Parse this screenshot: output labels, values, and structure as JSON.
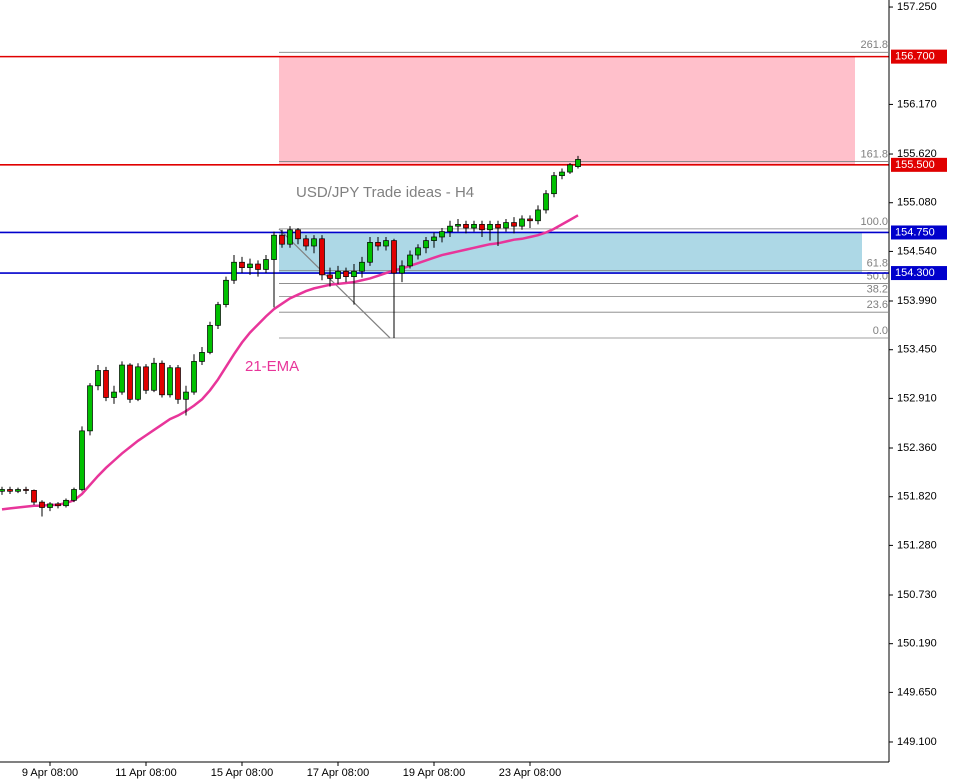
{
  "chart_data": {
    "type": "candlestick",
    "title": "USD/JPY Trade ideas - H4",
    "categories": [
      null,
      null,
      null,
      null,
      null,
      null,
      "9 Apr 08:00",
      null,
      null,
      null,
      null,
      null,
      null,
      null,
      null,
      null,
      null,
      null,
      "11 Apr 08:00",
      null,
      null,
      null,
      null,
      null,
      null,
      null,
      null,
      null,
      null,
      null,
      "15 Apr 08:00",
      null,
      null,
      null,
      null,
      null,
      null,
      null,
      null,
      null,
      null,
      null,
      "17 Apr 08:00",
      null,
      null,
      null,
      null,
      null,
      null,
      null,
      null,
      null,
      null,
      null,
      "19 Apr 08:00",
      null,
      null,
      null,
      null,
      null,
      null,
      null,
      null,
      null,
      null,
      null,
      "23 Apr 08:00",
      null,
      null,
      null,
      null,
      null,
      null
    ],
    "open": [
      151.88,
      151.9,
      151.88,
      151.9,
      151.89,
      151.76,
      151.7,
      151.74,
      151.72,
      151.78,
      151.9,
      152.55,
      153.05,
      153.22,
      152.92,
      152.98,
      153.28,
      152.9,
      153.26,
      153.0,
      153.3,
      152.95,
      153.25,
      152.9,
      152.98,
      153.32,
      153.42,
      153.72,
      153.95,
      154.22,
      154.42,
      154.36,
      154.4,
      154.34,
      154.45,
      154.72,
      154.62,
      154.78,
      154.68,
      154.6,
      154.68,
      154.28,
      154.24,
      154.32,
      154.26,
      154.32,
      154.42,
      154.64,
      154.6,
      154.66,
      154.3,
      154.38,
      154.5,
      154.58,
      154.66,
      154.7,
      154.76,
      154.82,
      154.84,
      154.8,
      154.84,
      154.78,
      154.84,
      154.8,
      154.86,
      154.82,
      154.9,
      154.88,
      155.0,
      155.18,
      155.38,
      155.42,
      155.48
    ],
    "high": [
      151.93,
      151.93,
      151.92,
      151.93,
      151.9,
      151.78,
      151.76,
      151.76,
      151.8,
      151.92,
      152.6,
      153.08,
      153.28,
      153.26,
      153.05,
      153.32,
      153.3,
      153.3,
      153.29,
      153.36,
      153.33,
      153.28,
      153.28,
      153.05,
      153.4,
      153.48,
      153.76,
      153.98,
      154.26,
      154.5,
      154.48,
      154.46,
      154.44,
      154.5,
      154.76,
      154.78,
      154.82,
      154.8,
      154.72,
      154.72,
      154.72,
      154.36,
      154.38,
      154.36,
      154.4,
      154.48,
      154.7,
      154.7,
      154.7,
      154.68,
      154.44,
      154.55,
      154.62,
      154.7,
      154.75,
      154.8,
      154.88,
      154.9,
      154.88,
      154.88,
      154.88,
      154.88,
      154.88,
      154.9,
      154.92,
      154.94,
      154.94,
      155.05,
      155.22,
      155.42,
      155.46,
      155.52,
      155.6
    ],
    "low": [
      151.84,
      151.85,
      151.86,
      151.85,
      151.73,
      151.6,
      151.66,
      151.69,
      151.7,
      151.76,
      151.88,
      152.5,
      153.0,
      152.88,
      152.85,
      152.95,
      152.86,
      152.88,
      152.96,
      152.98,
      152.92,
      152.92,
      152.85,
      152.72,
      152.95,
      153.28,
      153.4,
      153.68,
      153.92,
      154.18,
      154.3,
      154.28,
      154.26,
      154.3,
      153.92,
      154.58,
      154.58,
      154.62,
      154.55,
      154.52,
      154.22,
      154.15,
      154.18,
      154.2,
      153.95,
      154.25,
      154.38,
      154.55,
      154.55,
      153.58,
      154.2,
      154.35,
      154.45,
      154.52,
      154.58,
      154.64,
      154.7,
      154.76,
      154.74,
      154.76,
      154.7,
      154.66,
      154.6,
      154.76,
      154.74,
      154.78,
      154.8,
      154.84,
      154.96,
      155.14,
      155.34,
      155.4,
      155.46
    ],
    "close": [
      151.9,
      151.88,
      151.9,
      151.89,
      151.76,
      151.7,
      151.74,
      151.72,
      151.78,
      151.9,
      152.55,
      153.05,
      153.22,
      152.92,
      152.98,
      153.28,
      152.9,
      153.26,
      153.0,
      153.3,
      152.95,
      153.25,
      152.9,
      152.98,
      153.32,
      153.42,
      153.72,
      153.95,
      154.22,
      154.42,
      154.36,
      154.4,
      154.34,
      154.45,
      154.72,
      154.62,
      154.78,
      154.68,
      154.6,
      154.68,
      154.28,
      154.24,
      154.32,
      154.26,
      154.32,
      154.42,
      154.64,
      154.6,
      154.66,
      154.3,
      154.38,
      154.5,
      154.58,
      154.66,
      154.7,
      154.76,
      154.82,
      154.84,
      154.8,
      154.84,
      154.78,
      154.84,
      154.8,
      154.86,
      154.82,
      154.9,
      154.88,
      155.0,
      155.18,
      155.38,
      155.42,
      155.5,
      155.56
    ],
    "up_color": "#00c000",
    "down_color": "#e00000",
    "ema": {
      "name": "21-EMA",
      "color": "#e8359a",
      "values": [
        151.68,
        151.69,
        151.7,
        151.71,
        151.72,
        151.72,
        151.73,
        151.73,
        151.75,
        151.78,
        151.85,
        151.95,
        152.05,
        152.14,
        152.22,
        152.3,
        152.37,
        152.44,
        152.5,
        152.56,
        152.62,
        152.68,
        152.72,
        152.77,
        152.83,
        152.9,
        153.0,
        153.12,
        153.26,
        153.4,
        153.53,
        153.64,
        153.73,
        153.82,
        153.9,
        153.96,
        154.02,
        154.06,
        154.1,
        154.13,
        154.15,
        154.17,
        154.18,
        154.19,
        154.2,
        154.22,
        154.24,
        154.27,
        154.3,
        154.33,
        154.35,
        154.38,
        154.41,
        154.44,
        154.47,
        154.5,
        154.52,
        154.54,
        154.56,
        154.58,
        154.6,
        154.62,
        154.63,
        154.65,
        154.67,
        154.68,
        154.7,
        154.72,
        154.75,
        154.79,
        154.84,
        154.89,
        154.94
      ]
    },
    "levels": [
      {
        "value": 156.7,
        "label": "156.700",
        "color": "#e00000"
      },
      {
        "value": 155.5,
        "label": "155.500",
        "color": "#e00000"
      },
      {
        "value": 154.75,
        "label": "154.750",
        "color": "#0000cc"
      },
      {
        "value": 154.3,
        "label": "154.300",
        "color": "#0000cc"
      }
    ],
    "zones": [
      {
        "from": 155.5,
        "to": 156.7,
        "color": "#ffc0cb"
      },
      {
        "from": 154.3,
        "to": 154.75,
        "color": "#add8e6"
      }
    ],
    "fib": [
      {
        "label": "261.8",
        "value": 156.748
      },
      {
        "label": "161.8",
        "value": 155.538
      },
      {
        "label": "100.0",
        "value": 154.79
      },
      {
        "label": "61.8",
        "value": 154.33
      },
      {
        "label": "50.0",
        "value": 154.185
      },
      {
        "label": "38.2",
        "value": 154.04
      },
      {
        "label": "23.6",
        "value": 153.866
      },
      {
        "label": "0.0",
        "value": 153.58
      }
    ],
    "ylim": [
      148.878,
      157.328
    ],
    "yticks": [
      {
        "value": 157.25,
        "label": "157.250"
      },
      {
        "value": 156.17,
        "label": "156.170"
      },
      {
        "value": 155.62,
        "label": "155.620"
      },
      {
        "value": 155.08,
        "label": "155.080"
      },
      {
        "value": 154.54,
        "label": "154.540"
      },
      {
        "value": 153.99,
        "label": "153.990"
      },
      {
        "value": 153.45,
        "label": "153.450"
      },
      {
        "value": 152.91,
        "label": "152.910"
      },
      {
        "value": 152.36,
        "label": "152.360"
      },
      {
        "value": 151.82,
        "label": "151.820"
      },
      {
        "value": 151.28,
        "label": "151.280"
      },
      {
        "value": 150.73,
        "label": "150.730"
      },
      {
        "value": 150.19,
        "label": "150.190"
      },
      {
        "value": 149.65,
        "label": "149.650"
      },
      {
        "value": 149.1,
        "label": "149.100"
      }
    ]
  }
}
